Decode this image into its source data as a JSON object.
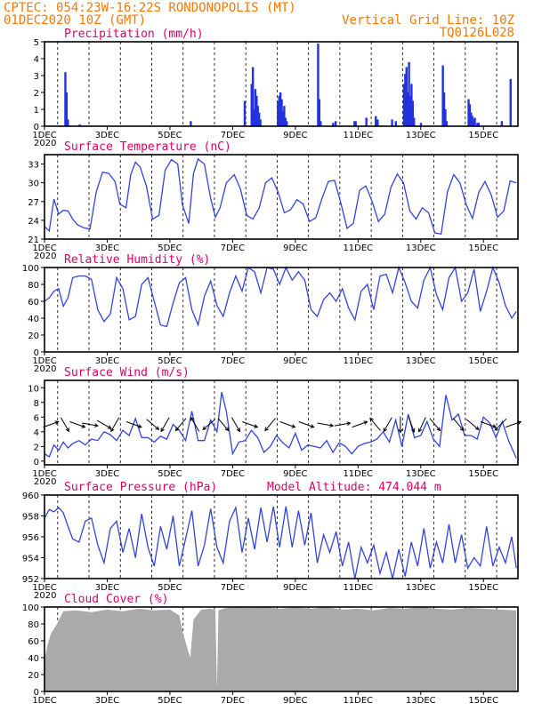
{
  "header": {
    "line1_left": "CPTEC:   054:23W-16:22S   RONDONOPOLIS (MT)",
    "line2_left": "01DEC2020 10Z (GMT)",
    "line2_right": "Vertical Grid Line: 10Z",
    "line3_right": "TQ0126L028"
  },
  "colors": {
    "series": "#3344dd",
    "bars": "#2233dd",
    "cloud": "#aaaaaa",
    "title": "#dd0066",
    "header": "#ff7700"
  },
  "x_axis": {
    "tick_labels": [
      "1DEC",
      "3DEC",
      "5DEC",
      "7DEC",
      "9DEC",
      "11DEC",
      "13DEC",
      "15DEC"
    ],
    "tick_days": [
      1,
      3,
      5,
      7,
      9,
      11,
      13,
      15
    ],
    "range_days": [
      1,
      16.1
    ],
    "grid_days": [
      1.42,
      2.42,
      3.42,
      4.42,
      5.42,
      6.42,
      7.42,
      8.42,
      9.42,
      10.42,
      11.42,
      12.42,
      13.42,
      14.42,
      15.42
    ],
    "year_label": "2020"
  },
  "chart_data": [
    {
      "id": "precip",
      "type": "bar",
      "title": "Precipitation (mm/h)",
      "ylim": [
        0,
        5
      ],
      "yticks": [
        "0",
        "1",
        "2",
        "3",
        "4",
        "5"
      ],
      "x": [
        1.66,
        1.7,
        1.74,
        2.12,
        5.66,
        7.38,
        7.6,
        7.64,
        7.68,
        7.72,
        7.76,
        7.8,
        7.84,
        7.88,
        8.44,
        8.48,
        8.52,
        8.56,
        8.6,
        8.64,
        8.68,
        8.72,
        9.72,
        9.76,
        9.8,
        10.2,
        10.28,
        10.88,
        10.92,
        11.26,
        11.56,
        11.62,
        12.08,
        12.2,
        12.46,
        12.5,
        12.54,
        12.58,
        12.62,
        12.66,
        12.7,
        12.74,
        12.78,
        13.0,
        13.7,
        13.74,
        13.78,
        13.82,
        14.52,
        14.56,
        14.6,
        14.64,
        14.68,
        14.72,
        14.8,
        14.84,
        15.58,
        15.86
      ],
      "values": [
        3.2,
        2.0,
        0.4,
        0.1,
        0.3,
        1.5,
        2.5,
        3.5,
        1.0,
        2.2,
        1.8,
        1.2,
        0.8,
        0.4,
        1.5,
        1.8,
        2.0,
        1.6,
        0.9,
        1.2,
        0.5,
        0.3,
        4.9,
        1.6,
        0.3,
        0.2,
        0.3,
        0.3,
        0.3,
        0.5,
        0.6,
        0.4,
        0.4,
        0.3,
        2.5,
        3.1,
        3.5,
        2.0,
        3.8,
        1.8,
        2.5,
        1.5,
        0.5,
        0.2,
        3.6,
        2.0,
        1.0,
        0.3,
        1.6,
        1.3,
        0.8,
        0.6,
        0.4,
        0.5,
        0.2,
        0.2,
        0.3,
        2.8
      ]
    },
    {
      "id": "temp",
      "type": "line",
      "title": "Surface Temperature (nC)",
      "ylim": [
        21,
        34.5
      ],
      "yticks": [
        "21",
        "24",
        "27",
        "30",
        "33"
      ],
      "x": [
        1.0,
        1.15,
        1.3,
        1.45,
        1.6,
        1.75,
        1.9,
        2.05,
        2.25,
        2.45,
        2.65,
        2.85,
        3.05,
        3.25,
        3.4,
        3.6,
        3.75,
        3.9,
        4.05,
        4.25,
        4.45,
        4.65,
        4.85,
        5.05,
        5.25,
        5.4,
        5.6,
        5.75,
        5.9,
        6.1,
        6.3,
        6.45,
        6.6,
        6.8,
        7.05,
        7.25,
        7.45,
        7.65,
        7.85,
        8.05,
        8.25,
        8.45,
        8.65,
        8.85,
        9.05,
        9.25,
        9.45,
        9.65,
        9.85,
        10.05,
        10.25,
        10.45,
        10.65,
        10.85,
        11.05,
        11.25,
        11.45,
        11.65,
        11.85,
        12.05,
        12.25,
        12.45,
        12.65,
        12.85,
        13.05,
        13.25,
        13.45,
        13.65,
        13.85,
        14.05,
        14.25,
        14.45,
        14.65,
        14.85,
        15.05,
        15.25,
        15.45,
        15.65,
        15.85,
        16.05
      ],
      "values": [
        23.0,
        22.3,
        27.4,
        25.0,
        25.6,
        25.5,
        24.2,
        23.3,
        22.8,
        22.6,
        28.5,
        31.7,
        31.5,
        30.2,
        26.6,
        26.0,
        31.3,
        33.3,
        32.5,
        29.5,
        24.2,
        24.8,
        32.0,
        33.7,
        33.0,
        26.5,
        23.5,
        31.5,
        33.8,
        33.0,
        27.5,
        24.5,
        26.0,
        30.0,
        31.3,
        29.0,
        24.8,
        24.2,
        26.0,
        30.0,
        30.8,
        28.5,
        25.2,
        25.7,
        27.3,
        26.6,
        23.8,
        24.4,
        27.5,
        30.2,
        30.4,
        26.8,
        22.7,
        23.5,
        28.8,
        29.5,
        27.0,
        23.8,
        25.0,
        29.3,
        31.4,
        30.0,
        25.5,
        24.2,
        26.0,
        25.2,
        22.0,
        21.8,
        28.5,
        31.3,
        30.0,
        26.5,
        24.3,
        28.5,
        30.2,
        28.0,
        24.5,
        25.5,
        30.3,
        30.0
      ]
    },
    {
      "id": "humidity",
      "type": "line",
      "title": "Relative Humidity (%)",
      "ylim": [
        0,
        100
      ],
      "yticks": [
        "0",
        "20",
        "40",
        "60",
        "80",
        "100"
      ],
      "x": [
        1.0,
        1.15,
        1.3,
        1.45,
        1.6,
        1.75,
        1.9,
        2.1,
        2.3,
        2.5,
        2.7,
        2.9,
        3.1,
        3.3,
        3.5,
        3.7,
        3.9,
        4.1,
        4.3,
        4.5,
        4.7,
        4.9,
        5.1,
        5.3,
        5.5,
        5.7,
        5.9,
        6.1,
        6.3,
        6.5,
        6.7,
        6.9,
        7.1,
        7.3,
        7.5,
        7.7,
        7.9,
        8.1,
        8.3,
        8.5,
        8.7,
        8.9,
        9.1,
        9.3,
        9.5,
        9.7,
        9.9,
        10.1,
        10.3,
        10.5,
        10.7,
        10.9,
        11.1,
        11.3,
        11.5,
        11.7,
        11.9,
        12.1,
        12.3,
        12.5,
        12.7,
        12.9,
        13.1,
        13.3,
        13.5,
        13.7,
        13.9,
        14.1,
        14.3,
        14.5,
        14.7,
        14.9,
        15.1,
        15.3,
        15.5,
        15.7,
        15.9,
        16.05
      ],
      "values": [
        60,
        64,
        72,
        75,
        54,
        64,
        88,
        90,
        90,
        86,
        50,
        36,
        45,
        88,
        75,
        38,
        42,
        80,
        88,
        60,
        32,
        30,
        58,
        82,
        88,
        50,
        32,
        66,
        84,
        55,
        42,
        70,
        90,
        72,
        100,
        95,
        70,
        100,
        98,
        80,
        100,
        85,
        95,
        85,
        50,
        42,
        62,
        70,
        60,
        75,
        52,
        38,
        72,
        80,
        50,
        90,
        92,
        70,
        100,
        82,
        60,
        52,
        85,
        100,
        68,
        50,
        88,
        100,
        60,
        70,
        98,
        48,
        72,
        100,
        82,
        55,
        40,
        48
      ]
    },
    {
      "id": "wind",
      "type": "line",
      "title": "Surface Wind (m/s)",
      "ylim": [
        -0.5,
        11
      ],
      "yticks": [
        "0",
        "2",
        "4",
        "6",
        "8",
        "10"
      ],
      "x": [
        1.0,
        1.15,
        1.3,
        1.45,
        1.6,
        1.75,
        1.9,
        2.1,
        2.3,
        2.5,
        2.7,
        2.9,
        3.1,
        3.3,
        3.5,
        3.7,
        3.9,
        4.1,
        4.3,
        4.5,
        4.7,
        4.9,
        5.1,
        5.3,
        5.5,
        5.7,
        5.9,
        6.1,
        6.3,
        6.5,
        6.65,
        6.8,
        7.0,
        7.2,
        7.4,
        7.6,
        7.8,
        8.0,
        8.2,
        8.4,
        8.6,
        8.8,
        9.0,
        9.2,
        9.4,
        9.6,
        9.8,
        10.0,
        10.2,
        10.4,
        10.6,
        10.8,
        11.0,
        11.2,
        11.4,
        11.6,
        11.8,
        12.0,
        12.2,
        12.4,
        12.6,
        12.8,
        13.0,
        13.2,
        13.4,
        13.6,
        13.8,
        14.0,
        14.2,
        14.4,
        14.6,
        14.8,
        15.0,
        15.2,
        15.4,
        15.6,
        15.8,
        16.05
      ],
      "values": [
        1.0,
        0.6,
        2.2,
        1.5,
        2.6,
        1.8,
        2.4,
        2.8,
        2.2,
        3.0,
        2.8,
        4.0,
        3.6,
        2.8,
        4.2,
        3.5,
        5.8,
        3.2,
        3.2,
        2.6,
        3.4,
        3.0,
        5.0,
        4.2,
        2.8,
        6.8,
        2.8,
        2.8,
        5.6,
        4.0,
        9.4,
        6.8,
        1.0,
        2.6,
        2.8,
        4.2,
        3.2,
        1.2,
        2.0,
        3.5,
        2.5,
        1.8,
        3.8,
        1.5,
        2.2,
        2.0,
        1.8,
        2.8,
        1.2,
        2.5,
        2.0,
        1.0,
        2.0,
        2.4,
        2.6,
        3.0,
        4.0,
        2.6,
        5.6,
        2.0,
        6.4,
        3.2,
        3.5,
        5.4,
        3.0,
        2.0,
        9.0,
        5.6,
        6.4,
        3.5,
        3.5,
        3.0,
        6.0,
        5.2,
        3.2,
        5.4,
        2.8,
        0.4
      ]
    },
    {
      "id": "pressure",
      "type": "line",
      "title": "Surface Pressure (hPa)",
      "annotation": "Model Altitude: 474.044 m",
      "ylim": [
        952,
        960
      ],
      "yticks": [
        "952",
        "954",
        "956",
        "958",
        "960"
      ],
      "x": [
        1.0,
        1.15,
        1.3,
        1.45,
        1.6,
        1.75,
        1.9,
        2.1,
        2.3,
        2.5,
        2.7,
        2.9,
        3.1,
        3.3,
        3.5,
        3.7,
        3.9,
        4.1,
        4.3,
        4.5,
        4.7,
        4.9,
        5.1,
        5.3,
        5.5,
        5.7,
        5.9,
        6.1,
        6.3,
        6.5,
        6.7,
        6.9,
        7.1,
        7.3,
        7.5,
        7.7,
        7.9,
        8.1,
        8.3,
        8.5,
        8.7,
        8.9,
        9.1,
        9.3,
        9.5,
        9.7,
        9.9,
        10.1,
        10.3,
        10.5,
        10.7,
        10.9,
        11.1,
        11.3,
        11.5,
        11.7,
        11.9,
        12.1,
        12.3,
        12.5,
        12.7,
        12.9,
        13.1,
        13.3,
        13.5,
        13.7,
        13.9,
        14.1,
        14.3,
        14.5,
        14.7,
        14.9,
        15.1,
        15.3,
        15.5,
        15.7,
        15.9,
        16.05
      ],
      "values": [
        957.8,
        958.6,
        958.4,
        958.8,
        958.3,
        957.0,
        955.8,
        955.5,
        957.5,
        957.8,
        955.2,
        953.5,
        956.8,
        957.5,
        954.5,
        956.8,
        954.0,
        958.2,
        955.0,
        953.2,
        957.0,
        954.8,
        958.0,
        953.2,
        955.8,
        958.5,
        953.2,
        955.2,
        958.7,
        955.0,
        953.5,
        957.5,
        958.8,
        954.5,
        957.8,
        954.8,
        958.8,
        955.5,
        958.9,
        955.0,
        958.9,
        955.0,
        958.5,
        955.2,
        958.3,
        953.5,
        956.2,
        954.5,
        956.5,
        953.2,
        955.5,
        952.0,
        955.0,
        953.5,
        955.2,
        952.5,
        954.5,
        952.0,
        954.8,
        952.2,
        955.5,
        953.2,
        956.8,
        953.0,
        955.5,
        953.5,
        957.2,
        953.5,
        956.2,
        953.0,
        954.0,
        953.2,
        957.0,
        953.2,
        955.0,
        953.5,
        956.0,
        953.0
      ]
    },
    {
      "id": "cloud",
      "type": "area",
      "title": "Cloud Cover (%)",
      "ylim": [
        0,
        100
      ],
      "yticks": [
        "0",
        "20",
        "40",
        "60",
        "80",
        "100"
      ],
      "x": [
        1.0,
        1.1,
        1.2,
        1.4,
        1.6,
        2.0,
        2.5,
        3.0,
        3.5,
        4.0,
        4.5,
        5.0,
        5.3,
        5.4,
        5.55,
        5.65,
        5.75,
        6.0,
        6.3,
        6.45,
        6.5,
        6.55,
        6.7,
        7.0,
        7.5,
        8.0,
        8.5,
        9.0,
        9.5,
        10.0,
        10.5,
        11.0,
        11.5,
        12.0,
        12.5,
        13.0,
        13.5,
        14.0,
        14.5,
        15.0,
        15.5,
        16.05
      ],
      "values": [
        38,
        55,
        68,
        80,
        95,
        96,
        94,
        97,
        95,
        98,
        96,
        97,
        90,
        72,
        52,
        40,
        85,
        97,
        98,
        96,
        3,
        96,
        98,
        100,
        99,
        100,
        98,
        100,
        98,
        100,
        97,
        98,
        96,
        99,
        98,
        100,
        98,
        97,
        99,
        98,
        97,
        96
      ]
    }
  ],
  "wind_arrows": [
    {
      "day": 1.2,
      "dir_deg": 70
    },
    {
      "day": 1.65,
      "dir_deg": 150
    },
    {
      "day": 2.05,
      "dir_deg": 110
    },
    {
      "day": 2.45,
      "dir_deg": 100
    },
    {
      "day": 2.9,
      "dir_deg": 120
    },
    {
      "day": 3.25,
      "dir_deg": 210
    },
    {
      "day": 3.85,
      "dir_deg": 110
    },
    {
      "day": 4.45,
      "dir_deg": 130
    },
    {
      "day": 4.85,
      "dir_deg": 210
    },
    {
      "day": 5.35,
      "dir_deg": 220
    },
    {
      "day": 5.8,
      "dir_deg": 330
    },
    {
      "day": 6.25,
      "dir_deg": 230
    },
    {
      "day": 6.7,
      "dir_deg": 140
    },
    {
      "day": 7.1,
      "dir_deg": 150
    },
    {
      "day": 7.55,
      "dir_deg": 110
    },
    {
      "day": 8.2,
      "dir_deg": 220
    },
    {
      "day": 8.75,
      "dir_deg": 110
    },
    {
      "day": 9.35,
      "dir_deg": 110
    },
    {
      "day": 9.95,
      "dir_deg": 100
    },
    {
      "day": 10.5,
      "dir_deg": 80
    },
    {
      "day": 11.05,
      "dir_deg": 70
    },
    {
      "day": 11.55,
      "dir_deg": 320
    },
    {
      "day": 11.95,
      "dir_deg": 210
    },
    {
      "day": 12.35,
      "dir_deg": 180
    },
    {
      "day": 12.7,
      "dir_deg": 160
    },
    {
      "day": 13.05,
      "dir_deg": 205
    },
    {
      "day": 13.45,
      "dir_deg": 140
    },
    {
      "day": 14.2,
      "dir_deg": 140
    },
    {
      "day": 14.65,
      "dir_deg": 130
    },
    {
      "day": 15.15,
      "dir_deg": 110
    },
    {
      "day": 15.55,
      "dir_deg": 225
    },
    {
      "day": 15.95,
      "dir_deg": 70
    }
  ]
}
